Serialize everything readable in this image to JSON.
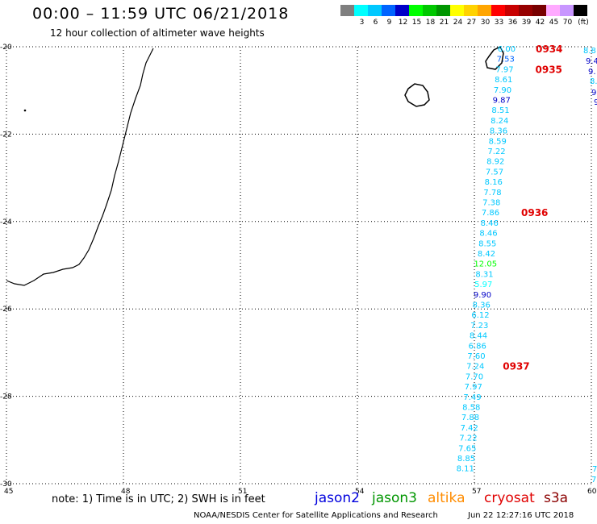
{
  "header": {
    "title": "00:00 – 11:59 UTC 06/21/2018",
    "subtitle": "12 hour collection of altimeter wave heights"
  },
  "color_scale": {
    "unit_label": "(ft)",
    "bins": [
      {
        "label": "",
        "color": "#7f7f7f"
      },
      {
        "label": "3",
        "color": "#00ffff"
      },
      {
        "label": "6",
        "color": "#00c8ff"
      },
      {
        "label": "9",
        "color": "#0064ff"
      },
      {
        "label": "12",
        "color": "#0000c8"
      },
      {
        "label": "15",
        "color": "#00ff00"
      },
      {
        "label": "18",
        "color": "#00c800"
      },
      {
        "label": "21",
        "color": "#009600"
      },
      {
        "label": "24",
        "color": "#ffff00"
      },
      {
        "label": "27",
        "color": "#ffd200"
      },
      {
        "label": "30",
        "color": "#ffa500"
      },
      {
        "label": "33",
        "color": "#ff0000"
      },
      {
        "label": "36",
        "color": "#c80000"
      },
      {
        "label": "39",
        "color": "#960000"
      },
      {
        "label": "42",
        "color": "#780000"
      },
      {
        "label": "45",
        "color": "#ffaaff"
      },
      {
        "label": "70",
        "color": "#c896ff"
      },
      {
        "label": "",
        "color": "#000000"
      }
    ]
  },
  "map": {
    "lon_range": [
      45,
      60
    ],
    "lat_range": [
      -30,
      -20
    ],
    "lon_ticks": [
      "45",
      "48",
      "51",
      "54",
      "57",
      "60"
    ],
    "lat_ticks": [
      "-20",
      "-22",
      "-24",
      "-26",
      "-28",
      "-30"
    ],
    "gridlines": true
  },
  "track": {
    "satellite": "jason2",
    "points": [
      {
        "value": "6.00",
        "color": "#00c8ff"
      },
      {
        "value": "7.53",
        "color": "#0064ff"
      },
      {
        "value": "7.97",
        "color": "#00c8ff"
      },
      {
        "value": "8.61",
        "color": "#00c8ff"
      },
      {
        "value": "7.90",
        "color": "#00c8ff"
      },
      {
        "value": "9.87",
        "color": "#0000c8"
      },
      {
        "value": "8.51",
        "color": "#00c8ff"
      },
      {
        "value": "8.24",
        "color": "#00c8ff"
      },
      {
        "value": "8.36",
        "color": "#00c8ff"
      },
      {
        "value": "8.59",
        "color": "#00c8ff"
      },
      {
        "value": "7.22",
        "color": "#00c8ff"
      },
      {
        "value": "8.92",
        "color": "#00c8ff"
      },
      {
        "value": "7.57",
        "color": "#00c8ff"
      },
      {
        "value": "8.16",
        "color": "#00c8ff"
      },
      {
        "value": "7.78",
        "color": "#00c8ff"
      },
      {
        "value": "7.38",
        "color": "#00c8ff"
      },
      {
        "value": "7.86",
        "color": "#00c8ff"
      },
      {
        "value": "8.46",
        "color": "#00c8ff"
      },
      {
        "value": "8.46",
        "color": "#00c8ff"
      },
      {
        "value": "8.55",
        "color": "#00c8ff"
      },
      {
        "value": "8.42",
        "color": "#00c8ff"
      },
      {
        "value": "12.05",
        "color": "#00ff00"
      },
      {
        "value": "8.31",
        "color": "#00c8ff"
      },
      {
        "value": "5.97",
        "color": "#00ffff"
      },
      {
        "value": "9.90",
        "color": "#0000c8"
      },
      {
        "value": "8.36",
        "color": "#00c8ff"
      },
      {
        "value": "6.12",
        "color": "#00c8ff"
      },
      {
        "value": "7.23",
        "color": "#00c8ff"
      },
      {
        "value": "8.44",
        "color": "#00c8ff"
      },
      {
        "value": "6.86",
        "color": "#00c8ff"
      },
      {
        "value": "7.60",
        "color": "#00c8ff"
      },
      {
        "value": "7.24",
        "color": "#00c8ff"
      },
      {
        "value": "7.70",
        "color": "#00c8ff"
      },
      {
        "value": "7.97",
        "color": "#00c8ff"
      },
      {
        "value": "7.49",
        "color": "#00c8ff"
      },
      {
        "value": "8.58",
        "color": "#00c8ff"
      },
      {
        "value": "7.88",
        "color": "#00c8ff"
      },
      {
        "value": "7.42",
        "color": "#00c8ff"
      },
      {
        "value": "7.22",
        "color": "#00c8ff"
      },
      {
        "value": "7.65",
        "color": "#00c8ff"
      },
      {
        "value": "8.85",
        "color": "#00c8ff"
      },
      {
        "value": "8.11",
        "color": "#00c8ff"
      }
    ],
    "time_labels": [
      "0934",
      "0935",
      "0936",
      "0937"
    ],
    "time_color": "#e00000",
    "edge_values": [
      {
        "value": "8.8",
        "color": "#00c8ff"
      },
      {
        "value": "9.4",
        "color": "#0000c8"
      },
      {
        "value": "9.",
        "color": "#0000c8"
      },
      {
        "value": "8.",
        "color": "#00c8ff"
      },
      {
        "value": "9.",
        "color": "#0000c8"
      },
      {
        "value": "9",
        "color": "#0000c8"
      },
      {
        "value": "7",
        "color": "#00c8ff"
      },
      {
        "value": "7.",
        "color": "#00c8ff"
      }
    ]
  },
  "legend": {
    "note": "note: 1) Time is in UTC; 2) SWH is in feet",
    "satellites": [
      {
        "name": "jason2",
        "color": "#0000dd"
      },
      {
        "name": "jason3",
        "color": "#009600"
      },
      {
        "name": "altika",
        "color": "#ff8c00"
      },
      {
        "name": "cryosat",
        "color": "#e00000"
      },
      {
        "name": "s3a",
        "color": "#8b0000"
      }
    ]
  },
  "footer": {
    "credit": "NOAA/NESDIS Center for Satellite Applications and Research",
    "timestamp": "Jun 22 12:27:16 UTC 2018"
  }
}
